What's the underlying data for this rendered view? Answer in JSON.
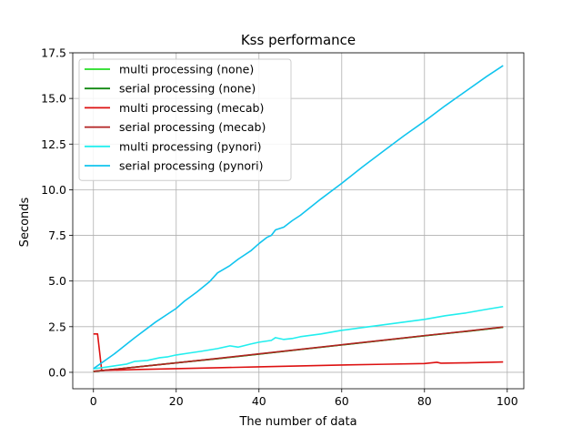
{
  "chart_data": {
    "type": "line",
    "title": "Kss performance",
    "xlabel": "The number of data",
    "ylabel": "Seconds",
    "xlim": [
      -5,
      104
    ],
    "ylim": [
      -0.9,
      17.5
    ],
    "xticks": [
      0,
      20,
      40,
      60,
      80,
      100
    ],
    "yticks": [
      0.0,
      2.5,
      5.0,
      7.5,
      10.0,
      12.5,
      15.0,
      17.5
    ],
    "xtick_labels": [
      "0",
      "20",
      "40",
      "60",
      "80",
      "100"
    ],
    "ytick_labels": [
      "0.0",
      "2.5",
      "5.0",
      "7.5",
      "10.0",
      "12.5",
      "15.0",
      "17.5"
    ],
    "grid": true,
    "legend_position": "upper-left",
    "series": [
      {
        "name": "multi processing (none)",
        "color": "#22dd22",
        "x": [
          0,
          10,
          20,
          30,
          40,
          50,
          60,
          70,
          80,
          90,
          99
        ],
        "values": [
          0.05,
          0.28,
          0.52,
          0.75,
          1.0,
          1.25,
          1.5,
          1.75,
          2.0,
          2.24,
          2.47
        ]
      },
      {
        "name": "serial processing (none)",
        "color": "#118811",
        "x": [
          0,
          10,
          20,
          30,
          40,
          50,
          60,
          70,
          80,
          90,
          99
        ],
        "values": [
          0.05,
          0.28,
          0.52,
          0.75,
          1.0,
          1.25,
          1.5,
          1.75,
          2.0,
          2.24,
          2.47
        ]
      },
      {
        "name": "multi processing (mecab)",
        "color": "#dd1111",
        "x": [
          0,
          1,
          2,
          10,
          20,
          30,
          40,
          50,
          60,
          70,
          80,
          83,
          84,
          90,
          99
        ],
        "values": [
          2.1,
          2.1,
          0.1,
          0.15,
          0.2,
          0.25,
          0.3,
          0.35,
          0.4,
          0.44,
          0.48,
          0.55,
          0.5,
          0.52,
          0.57
        ]
      },
      {
        "name": "serial processing (mecab)",
        "color": "#b22222",
        "x": [
          0,
          10,
          20,
          30,
          40,
          50,
          60,
          70,
          80,
          90,
          99
        ],
        "values": [
          0.05,
          0.28,
          0.52,
          0.76,
          1.01,
          1.26,
          1.51,
          1.76,
          2.01,
          2.25,
          2.48
        ]
      },
      {
        "name": "multi processing (pynori)",
        "color": "#22eeee",
        "x": [
          0,
          2,
          5,
          8,
          10,
          13,
          16,
          18,
          20,
          23,
          26,
          30,
          33,
          35,
          38,
          40,
          43,
          44,
          46,
          48,
          50,
          55,
          60,
          65,
          70,
          75,
          80,
          85,
          90,
          95,
          99
        ],
        "values": [
          0.2,
          0.25,
          0.35,
          0.45,
          0.6,
          0.65,
          0.8,
          0.85,
          0.95,
          1.05,
          1.15,
          1.3,
          1.45,
          1.38,
          1.55,
          1.65,
          1.75,
          1.9,
          1.8,
          1.85,
          1.95,
          2.1,
          2.3,
          2.45,
          2.6,
          2.75,
          2.9,
          3.1,
          3.25,
          3.45,
          3.6
        ]
      },
      {
        "name": "serial processing (pynori)",
        "color": "#11c4ee",
        "x": [
          0,
          5,
          10,
          15,
          20,
          22,
          25,
          28,
          30,
          33,
          35,
          38,
          40,
          42,
          43,
          44,
          46,
          48,
          50,
          55,
          60,
          65,
          70,
          75,
          80,
          85,
          90,
          95,
          99
        ],
        "values": [
          0.2,
          1.0,
          1.9,
          2.75,
          3.5,
          3.9,
          4.4,
          4.95,
          5.45,
          5.85,
          6.2,
          6.65,
          7.05,
          7.4,
          7.5,
          7.8,
          7.95,
          8.3,
          8.6,
          9.5,
          10.35,
          11.25,
          12.1,
          12.95,
          13.75,
          14.6,
          15.4,
          16.2,
          16.8
        ]
      }
    ]
  }
}
